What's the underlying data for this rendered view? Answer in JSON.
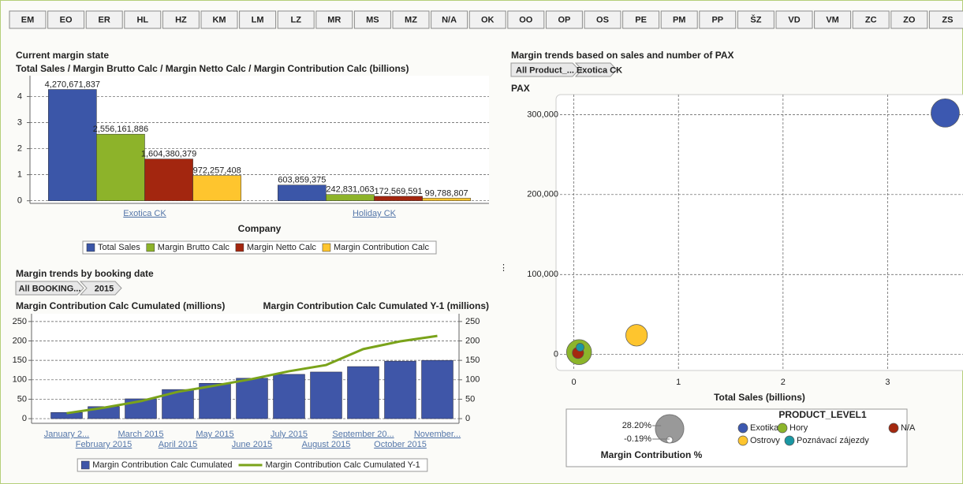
{
  "tabs": [
    "EM",
    "EO",
    "ER",
    "HL",
    "HZ",
    "KM",
    "LM",
    "LZ",
    "MR",
    "MS",
    "MZ",
    "N/A",
    "OK",
    "OO",
    "OP",
    "OS",
    "PE",
    "PM",
    "PP",
    "ŠZ",
    "VD",
    "VM",
    "ZC",
    "ZO",
    "ZS"
  ],
  "chart_data": [
    {
      "type": "bar",
      "title": "Current margin state",
      "subtitle": "Total Sales / Margin Brutto Calc / Margin Netto Calc / Margin Contribution Calc (billions)",
      "categories": [
        "Exotica CK",
        "Holiday CK"
      ],
      "xlabel": "Company",
      "series": [
        {
          "name": "Total Sales",
          "color": "#3b56a8",
          "values": [
            4.270671837,
            0.603859375
          ],
          "value_labels": [
            "4,270,671,837",
            "603,859,375"
          ]
        },
        {
          "name": "Margin Brutto Calc",
          "color": "#8db32a",
          "values": [
            2.556161886,
            0.242831063
          ],
          "value_labels": [
            "2,556,161,886",
            "242,831,063"
          ]
        },
        {
          "name": "Margin Netto Calc",
          "color": "#a3260f",
          "values": [
            1.604380379,
            0.172569591
          ],
          "value_labels": [
            "1,604,380,379",
            "172,569,591"
          ]
        },
        {
          "name": "Margin Contribution Calc",
          "color": "#fec52e",
          "values": [
            0.972257408,
            0.099788807
          ],
          "value_labels": [
            "972,257,408",
            "99,788,807"
          ]
        }
      ],
      "ylim": [
        -0.1,
        4.8
      ],
      "yticks": [
        0,
        1,
        2,
        3,
        4
      ],
      "grid": true
    },
    {
      "type": "bar-line",
      "title": "Margin trends by booking date",
      "breadcrumbs": [
        "All BOOKING...",
        "2015"
      ],
      "ylabel": "Margin Contribution Calc Cumulated (millions)",
      "y2label": "Margin Contribution Calc Cumulated Y-1 (millions)",
      "categories": [
        "January 2...",
        "February 2015",
        "March 2015",
        "April 2015",
        "May 2015",
        "June 2015",
        "July 2015",
        "August 2015",
        "September 20...",
        "October 2015",
        "November..."
      ],
      "series": [
        {
          "name": "Margin Contribution Calc Cumulated",
          "type": "bar",
          "color": "#3f56a8",
          "values": [
            16,
            31,
            51,
            75,
            91,
            104,
            114,
            120,
            134,
            148,
            150
          ]
        },
        {
          "name": "Margin Contribution Calc Cumulated Y-1",
          "type": "line",
          "axis": "y2",
          "color": "#7aa31a",
          "values": [
            14,
            28,
            45,
            69,
            85,
            102,
            122,
            138,
            179,
            199,
            213
          ]
        }
      ],
      "ylim": [
        -12,
        270
      ],
      "yticks": [
        0,
        50,
        100,
        150,
        200,
        250
      ],
      "y2lim": [
        -12,
        270
      ],
      "y2ticks": [
        0,
        50,
        100,
        150,
        200,
        250
      ],
      "grid": true
    },
    {
      "type": "bubble",
      "title": "Margin trends based on sales and number of PAX",
      "breadcrumbs": [
        "All Product_...",
        "Exotica CK"
      ],
      "ylabel": "PAX",
      "xlabel": "Total Sales (billions)",
      "xlim": [
        -0.17,
        3.72
      ],
      "xticks": [
        0,
        1,
        2,
        3
      ],
      "ylim": [
        -20000,
        325000
      ],
      "yticks": [
        0,
        {
          "value": 100000,
          "label": "100,000"
        },
        {
          "value": 200000,
          "label": "200,000"
        },
        {
          "value": 300000,
          "label": "300,000"
        }
      ],
      "legend_title": "PRODUCT_LEVEL1",
      "size_title": "Margin Contribution %",
      "size_legend": [
        {
          "value": 28.2,
          "label": "28.20%"
        },
        {
          "value": -0.19,
          "label": "-0.19%"
        }
      ],
      "series": [
        {
          "name": "Exotika",
          "color": "#3c58b0",
          "x": [
            3.55
          ],
          "values": [
            302000
          ],
          "sizes": [
            28.2
          ]
        },
        {
          "name": "Hory",
          "color": "#8cb52b",
          "x": [
            0.05
          ],
          "values": [
            3000
          ],
          "sizes": [
            23.8
          ]
        },
        {
          "name": "N/A",
          "color": "#a4280f",
          "x": [
            0.04
          ],
          "values": [
            2000
          ],
          "sizes": [
            6.4
          ]
        },
        {
          "name": "Ostrovy",
          "color": "#fec52e",
          "x": [
            0.6
          ],
          "values": [
            24000
          ],
          "sizes": [
            19.5
          ]
        },
        {
          "name": "Poznávací zájezdy",
          "color": "#1a97a3",
          "x": [
            0.06
          ],
          "values": [
            9000
          ],
          "sizes": [
            2.0
          ]
        }
      ],
      "grid": true
    }
  ]
}
